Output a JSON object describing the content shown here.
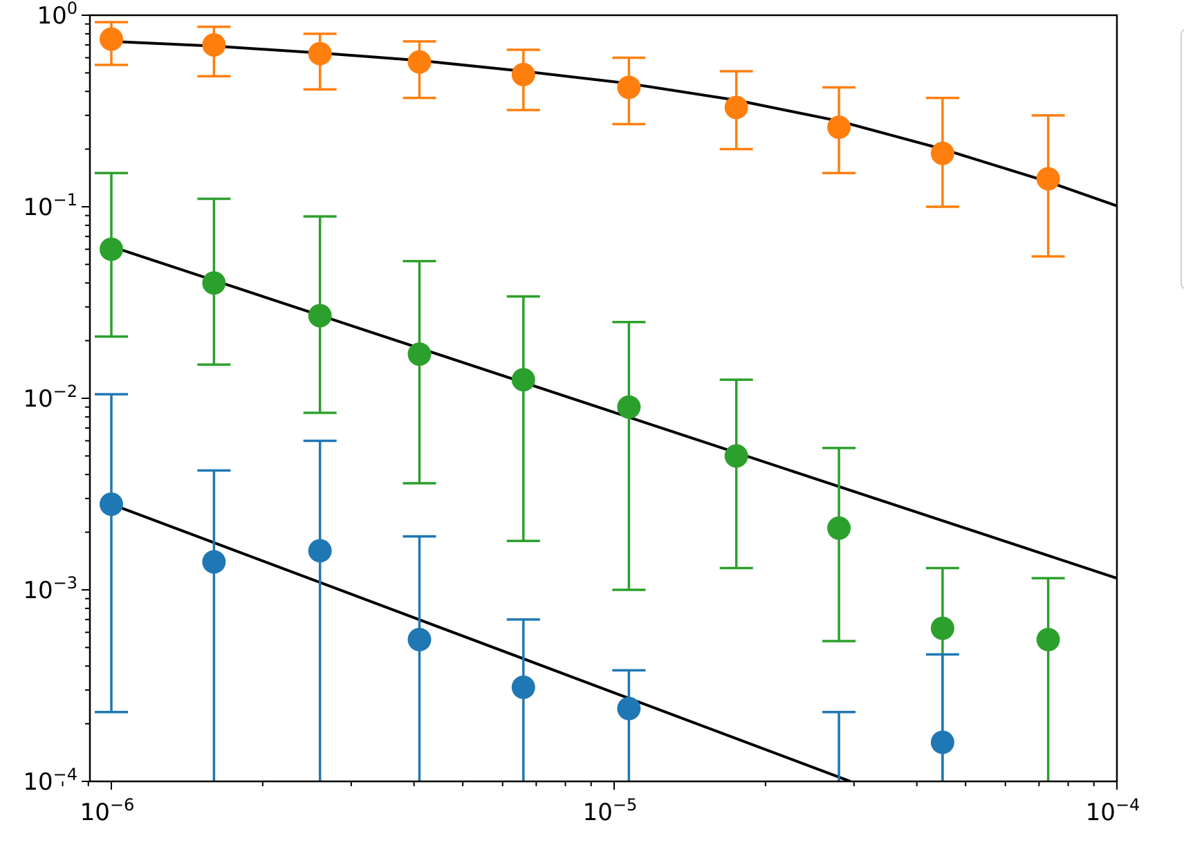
{
  "chart_data": {
    "type": "scatter",
    "title": "",
    "xlabel": "",
    "ylabel": "",
    "xscale": "log",
    "yscale": "log",
    "xlim": [
      8e-07,
      0.0001
    ],
    "ylim": [
      0.0001,
      1
    ],
    "grid": false,
    "legend": "right (clipped)",
    "x_ticks": [
      {
        "base": "10",
        "exp": "−6"
      },
      {
        "base": "10",
        "exp": "−5"
      },
      {
        "base": "10",
        "exp": "−4"
      }
    ],
    "y_ticks": [
      {
        "base": "10",
        "exp": "0"
      },
      {
        "base": "10",
        "exp": "−1"
      },
      {
        "base": "10",
        "exp": "−2"
      },
      {
        "base": "10",
        "exp": "−3"
      },
      {
        "base": "10",
        "exp": "−4"
      }
    ],
    "series": [
      {
        "color": "#ff7f0e",
        "x": [
          1e-06,
          1.6e-06,
          2.6e-06,
          4.1e-06,
          6.6e-06,
          1.07e-05,
          1.75e-05,
          2.8e-05,
          4.5e-05,
          7.3e-05
        ],
        "y": [
          0.75,
          0.7,
          0.63,
          0.57,
          0.49,
          0.42,
          0.33,
          0.26,
          0.19,
          0.14
        ],
        "yerr_lo": [
          0.55,
          0.48,
          0.41,
          0.37,
          0.32,
          0.27,
          0.2,
          0.15,
          0.1,
          0.055
        ],
        "yerr_hi": [
          0.92,
          0.87,
          0.8,
          0.73,
          0.66,
          0.6,
          0.51,
          0.42,
          0.37,
          0.3
        ]
      },
      {
        "color": "#2ca02c",
        "x": [
          1e-06,
          1.6e-06,
          2.6e-06,
          4.1e-06,
          6.6e-06,
          1.07e-05,
          1.75e-05,
          2.8e-05,
          4.5e-05,
          7.3e-05
        ],
        "y": [
          0.06,
          0.04,
          0.027,
          0.017,
          0.0125,
          0.009,
          0.005,
          0.0021,
          0.00063,
          0.00055
        ],
        "yerr_lo": [
          0.021,
          0.015,
          0.0084,
          0.0036,
          0.0018,
          0.001,
          0.0013,
          0.00054,
          8e-05,
          8e-05
        ],
        "yerr_hi": [
          0.15,
          0.11,
          0.089,
          0.052,
          0.034,
          0.025,
          0.0125,
          0.0055,
          0.0013,
          0.00115
        ]
      },
      {
        "color": "#1f77b4",
        "x": [
          1e-06,
          1.6e-06,
          2.6e-06,
          4.1e-06,
          6.6e-06,
          1.07e-05,
          4.5e-05
        ],
        "y": [
          0.0028,
          0.0014,
          0.0016,
          0.00055,
          0.00031,
          0.00024,
          0.00016
        ],
        "yerr_lo": [
          0.00023,
          8e-05,
          8e-05,
          8e-05,
          8e-05,
          8e-05,
          8e-05
        ],
        "yerr_hi": [
          0.0105,
          0.0042,
          0.006,
          0.0019,
          0.0007,
          0.00038,
          0.00046
        ],
        "extra_errorbars": [
          {
            "x": 2.8e-05,
            "lo": 8e-05,
            "hi": 0.00023
          }
        ]
      }
    ],
    "fit_lines": [
      {
        "color": "#000000",
        "x": [
          1e-06,
          1.6e-06,
          2.6e-06,
          4.1e-06,
          6.6e-06,
          1.07e-05,
          1.75e-05,
          2.8e-05,
          4.5e-05,
          7.3e-05,
          0.0001
        ],
        "y": [
          0.73,
          0.69,
          0.635,
          0.58,
          0.51,
          0.44,
          0.36,
          0.28,
          0.2,
          0.135,
          0.101
        ]
      },
      {
        "color": "#000000",
        "x": [
          1e-06,
          0.0001
        ],
        "y": [
          0.062,
          0.00115
        ]
      },
      {
        "color": "#000000",
        "x": [
          1e-06,
          2.95e-05
        ],
        "y": [
          0.0028,
          0.0001
        ]
      }
    ]
  }
}
